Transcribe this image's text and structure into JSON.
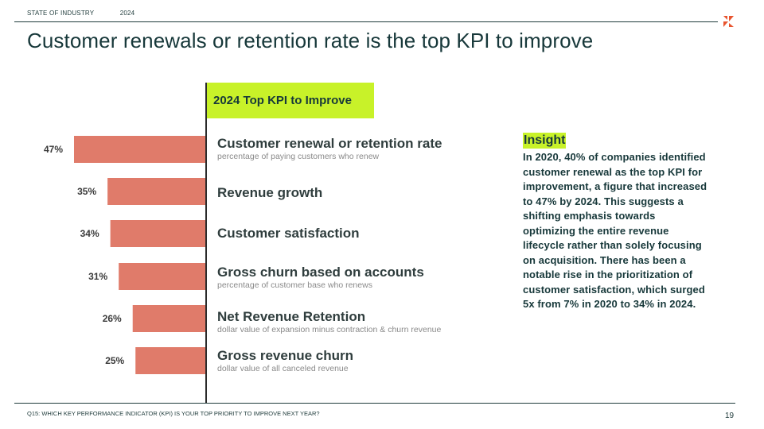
{
  "header": {
    "section": "STATE OF INDUSTRY",
    "year": "2024"
  },
  "title": "Customer renewals or retention rate is the top KPI to improve",
  "chart_data": {
    "type": "bar",
    "orientation": "horizontal",
    "title": "2024 Top KPI to Improve",
    "categories": [
      "Customer renewal or retention rate",
      "Revenue growth",
      "Customer satisfaction",
      "Gross churn based on accounts",
      "Net Revenue Retention",
      "Gross revenue churn"
    ],
    "descriptions": [
      "percentage of paying customers who renew",
      "",
      "",
      "percentage of customer base who renews",
      "dollar value of expansion minus contraction & churn revenue",
      "dollar value of all canceled revenue"
    ],
    "values": [
      47,
      35,
      34,
      31,
      26,
      25
    ],
    "value_labels": [
      "47%",
      "35%",
      "34%",
      "31%",
      "26%",
      "25%"
    ],
    "unit": "%",
    "xlim": [
      0,
      47
    ],
    "bar_color": "#e07b6a"
  },
  "insight": {
    "heading": "Insight",
    "text": "In 2020, 40% of companies identified customer renewal as the top KPI for improvement, a figure that increased to 47% by 2024. This suggests a shifting emphasis towards optimizing the entire revenue lifecycle rather than solely focusing on acquisition. There has been a notable rise in the prioritization of customer satisfaction, which surged 5x from 7% in 2020 to 34% in 2024."
  },
  "footer": {
    "question": "Q15: WHICH KEY PERFORMANCE INDICATOR (KPI) IS YOUR TOP PRIORITY TO IMPROVE NEXT YEAR?",
    "page": "19"
  },
  "colors": {
    "accent": "#c8f229",
    "bar": "#e07b6a",
    "logo": "#e8542e",
    "text": "#17383a"
  }
}
